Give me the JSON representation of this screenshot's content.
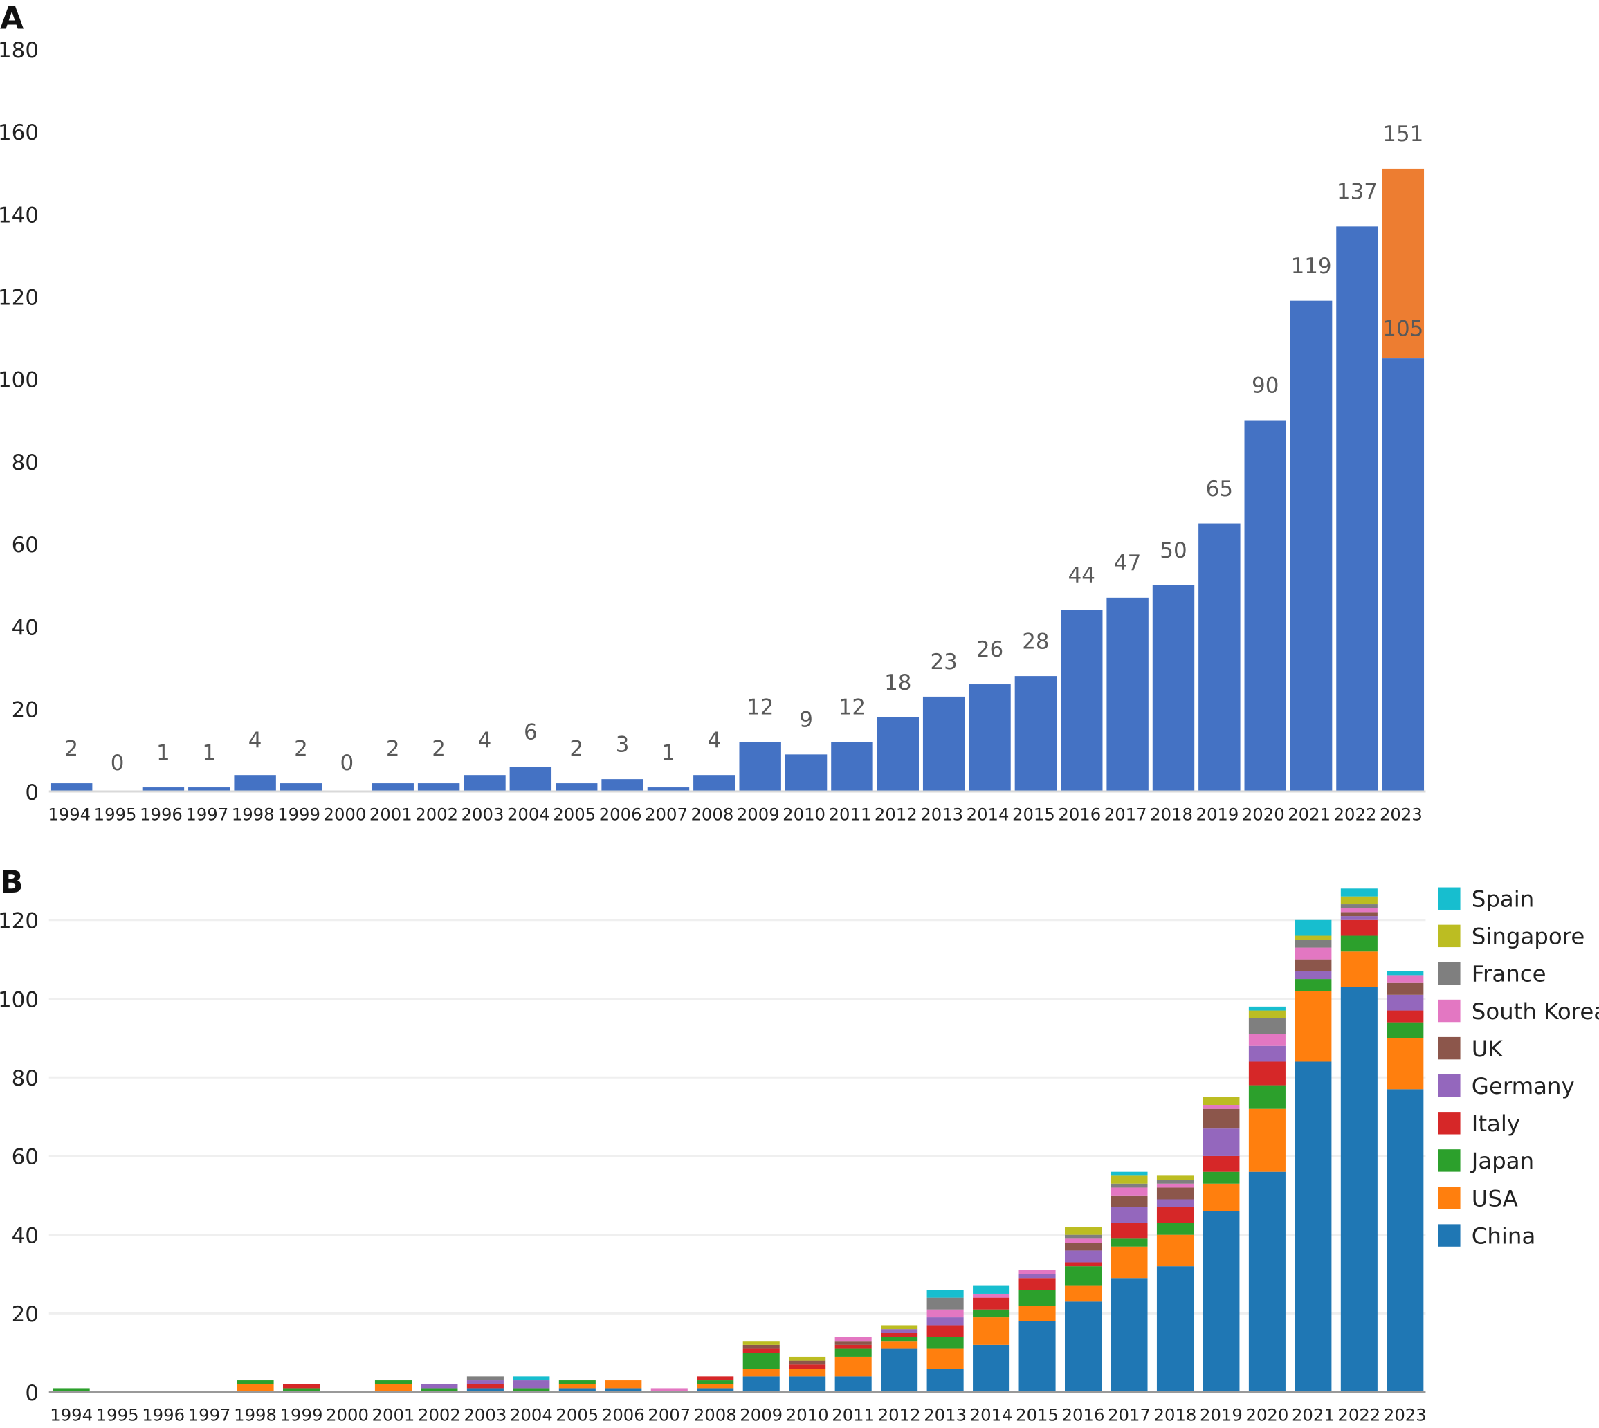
{
  "chart_data": [
    {
      "panel_label": "A",
      "type": "bar",
      "categories": [
        "1994",
        "1995",
        "1996",
        "1997",
        "1998",
        "1999",
        "2000",
        "2001",
        "2002",
        "2003",
        "2004",
        "2005",
        "2006",
        "2007",
        "2008",
        "2009",
        "2010",
        "2011",
        "2012",
        "2013",
        "2014",
        "2015",
        "2016",
        "2017",
        "2018",
        "2019",
        "2020",
        "2021",
        "2022",
        "2023"
      ],
      "values": [
        2,
        0,
        1,
        1,
        4,
        2,
        0,
        2,
        2,
        4,
        6,
        2,
        3,
        1,
        4,
        12,
        9,
        12,
        18,
        23,
        26,
        28,
        44,
        47,
        50,
        65,
        90,
        119,
        137,
        105
      ],
      "extension": {
        "category": "2023",
        "value": 151,
        "color": "#ED7D31"
      },
      "color": "#4472C4",
      "ylim": [
        0,
        180
      ],
      "yticks": [
        0,
        20,
        40,
        60,
        80,
        100,
        120,
        140,
        160,
        180
      ],
      "grid": false,
      "xlabel": "",
      "ylabel": ""
    },
    {
      "panel_label": "B",
      "type": "bar",
      "stacked": true,
      "categories": [
        "1994",
        "1995",
        "1996",
        "1997",
        "1998",
        "1999",
        "2000",
        "2001",
        "2002",
        "2003",
        "2004",
        "2005",
        "2006",
        "2007",
        "2008",
        "2009",
        "2010",
        "2011",
        "2012",
        "2013",
        "2014",
        "2015",
        "2016",
        "2017",
        "2018",
        "2019",
        "2020",
        "2021",
        "2022",
        "2023"
      ],
      "series": [
        {
          "name": "China",
          "color": "#1F77B4",
          "values": [
            0,
            0,
            0,
            0,
            0,
            0,
            0,
            0,
            0,
            1,
            0,
            1,
            1,
            0,
            1,
            4,
            4,
            4,
            11,
            6,
            12,
            18,
            23,
            29,
            32,
            46,
            56,
            84,
            103,
            77
          ]
        },
        {
          "name": "USA",
          "color": "#FF7F0E",
          "values": [
            0,
            0,
            0,
            0,
            2,
            0,
            0,
            2,
            0,
            0,
            0,
            1,
            2,
            0,
            1,
            2,
            2,
            5,
            2,
            5,
            7,
            4,
            4,
            8,
            8,
            7,
            16,
            18,
            9,
            13
          ]
        },
        {
          "name": "Japan",
          "color": "#2CA02C",
          "values": [
            1,
            0,
            0,
            0,
            1,
            1,
            0,
            1,
            1,
            0,
            1,
            1,
            0,
            0,
            1,
            4,
            0,
            2,
            1,
            3,
            2,
            4,
            5,
            2,
            3,
            3,
            6,
            3,
            4,
            4
          ]
        },
        {
          "name": "Italy",
          "color": "#D62728",
          "values": [
            0,
            0,
            0,
            0,
            0,
            1,
            0,
            0,
            0,
            1,
            0,
            0,
            0,
            0,
            1,
            1,
            1,
            1,
            1,
            3,
            3,
            3,
            1,
            4,
            4,
            4,
            6,
            0,
            4,
            3
          ]
        },
        {
          "name": "Germany",
          "color": "#9467BD",
          "values": [
            0,
            0,
            0,
            0,
            0,
            0,
            0,
            0,
            1,
            1,
            2,
            0,
            0,
            0,
            0,
            0,
            0,
            0,
            1,
            2,
            0,
            1,
            3,
            4,
            2,
            7,
            4,
            2,
            1,
            4
          ]
        },
        {
          "name": "UK",
          "color": "#8C564B",
          "values": [
            0,
            0,
            0,
            0,
            0,
            0,
            0,
            0,
            0,
            0,
            0,
            0,
            0,
            0,
            0,
            1,
            1,
            1,
            0,
            0,
            0,
            0,
            2,
            3,
            3,
            5,
            0,
            3,
            1,
            3
          ]
        },
        {
          "name": "South Korea",
          "color": "#E377C2",
          "values": [
            0,
            0,
            0,
            0,
            0,
            0,
            0,
            0,
            0,
            0,
            0,
            0,
            0,
            1,
            0,
            0,
            0,
            1,
            0,
            2,
            1,
            1,
            1,
            2,
            1,
            1,
            3,
            3,
            1,
            2
          ]
        },
        {
          "name": "France",
          "color": "#7F7F7F",
          "values": [
            0,
            0,
            0,
            0,
            0,
            0,
            0,
            0,
            0,
            1,
            0,
            0,
            0,
            0,
            0,
            0,
            0,
            0,
            0,
            3,
            0,
            0,
            1,
            1,
            1,
            0,
            4,
            2,
            1,
            0
          ]
        },
        {
          "name": "Singapore",
          "color": "#BCBD22",
          "values": [
            0,
            0,
            0,
            0,
            0,
            0,
            0,
            0,
            0,
            0,
            0,
            0,
            0,
            0,
            0,
            1,
            1,
            0,
            1,
            0,
            0,
            0,
            2,
            2,
            1,
            2,
            2,
            1,
            2,
            0
          ]
        },
        {
          "name": "Spain",
          "color": "#17BECF",
          "values": [
            0,
            0,
            0,
            0,
            0,
            0,
            0,
            0,
            0,
            0,
            1,
            0,
            0,
            0,
            0,
            0,
            0,
            0,
            0,
            2,
            2,
            0,
            0,
            1,
            0,
            0,
            1,
            4,
            2,
            1
          ]
        }
      ],
      "ylim": [
        0,
        130
      ],
      "yticks": [
        0,
        20,
        40,
        60,
        80,
        100,
        120
      ],
      "grid": true,
      "legend_position": "right",
      "xlabel": "",
      "ylabel": ""
    }
  ]
}
